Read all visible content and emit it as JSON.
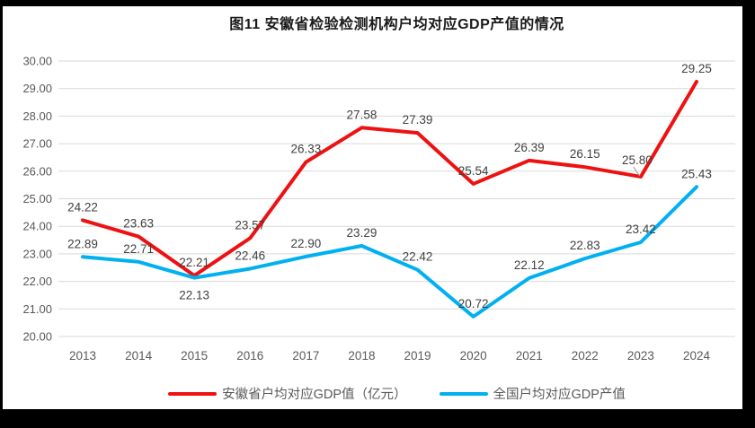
{
  "title": "图11 安徽省检验检测机构户均对应GDP产值的情况",
  "legend": {
    "items": [
      {
        "label": "安徽省户均对应GDP值（亿元）",
        "color": "#ee1111"
      },
      {
        "label": "全国户均对应GDP产值",
        "color": "#00b0f0"
      }
    ]
  },
  "chart_data": {
    "type": "line",
    "title": "图11 安徽省检验检测机构户均对应GDP产值的情况",
    "categories": [
      "2013",
      "2014",
      "2015",
      "2016",
      "2017",
      "2018",
      "2019",
      "2020",
      "2021",
      "2022",
      "2023",
      "2024"
    ],
    "series": [
      {
        "id": "anhui",
        "name": "安徽省户均对应GDP值（亿元）",
        "color": "#ee1111",
        "values": [
          24.22,
          23.63,
          22.21,
          23.57,
          26.33,
          27.58,
          27.39,
          25.54,
          26.39,
          26.15,
          25.8,
          29.25
        ],
        "labels": [
          "24.22",
          "23.63",
          "22.21",
          "23.57",
          "26.33",
          "27.58",
          "27.39",
          "25.54",
          "26.39",
          "26.15",
          "25.80",
          "29.25"
        ],
        "label_offsets": {
          "10": [
            -4,
            -4
          ]
        },
        "leader_point": 10
      },
      {
        "id": "national",
        "name": "全国户均对应GDP产值",
        "color": "#00b0f0",
        "values": [
          22.89,
          22.71,
          22.13,
          22.46,
          22.9,
          23.29,
          22.42,
          20.72,
          22.12,
          22.83,
          23.42,
          25.43
        ],
        "labels": [
          "22.89",
          "22.71",
          "22.13",
          "22.46",
          "22.90",
          "23.29",
          "22.42",
          "20.72",
          "22.12",
          "22.83",
          "23.42",
          "25.43"
        ],
        "label_offsets": {
          "2": [
            0,
            34
          ]
        }
      }
    ],
    "xlabel": "",
    "ylabel": "",
    "ylim": [
      20,
      30
    ],
    "yticks": [
      {
        "v": 20,
        "label": "20.00"
      },
      {
        "v": 21,
        "label": "21.00"
      },
      {
        "v": 22,
        "label": "22.00"
      },
      {
        "v": 23,
        "label": "23.00"
      },
      {
        "v": 24,
        "label": "24.00"
      },
      {
        "v": 25,
        "label": "25.00"
      },
      {
        "v": 26,
        "label": "26.00"
      },
      {
        "v": 27,
        "label": "27.00"
      },
      {
        "v": 28,
        "label": "28.00"
      },
      {
        "v": 29,
        "label": "29.00"
      },
      {
        "v": 30,
        "label": "30.00"
      }
    ],
    "grid": "horizontal",
    "data_labels": true,
    "legend_position": "bottom",
    "style": {
      "grid_color": "#d9d9d9",
      "axis_label_color": "#595959",
      "data_label_color": "#404040",
      "leader_line_color": "#a6a6a6",
      "frame_color": "#000000",
      "background": "#ffffff",
      "line_width": 4
    }
  }
}
